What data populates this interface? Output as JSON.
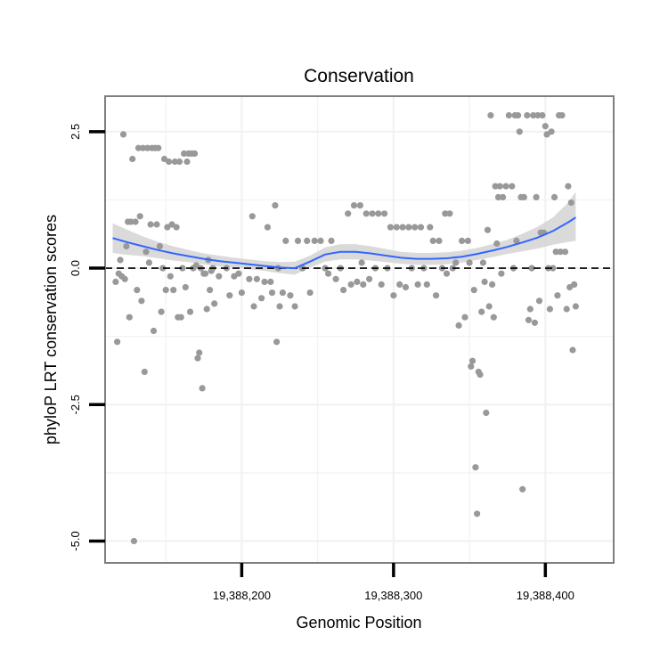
{
  "chart_data": {
    "type": "scatter",
    "title": "Conservation",
    "xlabel": "Genomic Position",
    "ylabel": "phyloP LRT conservation scores",
    "xlim": [
      19388110,
      19388445
    ],
    "ylim": [
      -5.4,
      3.15
    ],
    "x_ticks": [
      {
        "value": 19388200,
        "label": "19,388,200"
      },
      {
        "value": 19388300,
        "label": "19,388,300"
      },
      {
        "value": 19388400,
        "label": "19,388,400"
      }
    ],
    "y_ticks": [
      {
        "value": 2.5,
        "label": "2.5"
      },
      {
        "value": 0,
        "label": "0.0"
      },
      {
        "value": -2.5,
        "label": "-2.5"
      },
      {
        "value": -5,
        "label": "-5.0"
      }
    ],
    "reference_line": {
      "y": 0,
      "style": "dashed",
      "color": "#000000"
    },
    "grid": true,
    "colors": {
      "points": "#999999",
      "smooth": "#3366ff",
      "band": "#d3d3d3",
      "panel_border": "#7f7f7f",
      "grid": "#f2f2f2"
    },
    "points": [
      [
        19388117,
        -0.25
      ],
      [
        19388118,
        -1.35
      ],
      [
        19388119,
        -0.1
      ],
      [
        19388120,
        0.15
      ],
      [
        19388121,
        -0.15
      ],
      [
        19388122,
        2.45
      ],
      [
        19388123,
        -0.2
      ],
      [
        19388124,
        0.4
      ],
      [
        19388125,
        0.85
      ],
      [
        19388126,
        -0.9
      ],
      [
        19388127,
        0.85
      ],
      [
        19388128,
        2.0
      ],
      [
        19388129,
        -5.0
      ],
      [
        19388130,
        0.85
      ],
      [
        19388131,
        -0.4
      ],
      [
        19388132,
        2.2
      ],
      [
        19388133,
        0.95
      ],
      [
        19388134,
        -0.6
      ],
      [
        19388135,
        2.2
      ],
      [
        19388136,
        -1.9
      ],
      [
        19388137,
        0.3
      ],
      [
        19388138,
        2.2
      ],
      [
        19388139,
        0.1
      ],
      [
        19388140,
        0.8
      ],
      [
        19388141,
        2.2
      ],
      [
        19388142,
        -1.15
      ],
      [
        19388143,
        2.2
      ],
      [
        19388144,
        0.8
      ],
      [
        19388145,
        2.2
      ],
      [
        19388146,
        0.4
      ],
      [
        19388147,
        -0.8
      ],
      [
        19388148,
        0.0
      ],
      [
        19388149,
        2.0
      ],
      [
        19388150,
        -0.4
      ],
      [
        19388151,
        0.75
      ],
      [
        19388152,
        1.95
      ],
      [
        19388153,
        -0.15
      ],
      [
        19388154,
        0.8
      ],
      [
        19388155,
        -0.4
      ],
      [
        19388156,
        1.95
      ],
      [
        19388157,
        0.75
      ],
      [
        19388158,
        -0.9
      ],
      [
        19388159,
        1.95
      ],
      [
        19388160,
        -0.9
      ],
      [
        19388161,
        0.0
      ],
      [
        19388162,
        2.1
      ],
      [
        19388163,
        -0.35
      ],
      [
        19388164,
        1.95
      ],
      [
        19388165,
        2.1
      ],
      [
        19388166,
        -0.8
      ],
      [
        19388167,
        2.1
      ],
      [
        19388168,
        0.0
      ],
      [
        19388169,
        2.1
      ],
      [
        19388170,
        0.05
      ],
      [
        19388171,
        -1.65
      ],
      [
        19388172,
        -1.55
      ],
      [
        19388173,
        0.0
      ],
      [
        19388174,
        -2.2
      ],
      [
        19388175,
        -0.1
      ],
      [
        19388176,
        -0.1
      ],
      [
        19388177,
        -0.75
      ],
      [
        19388178,
        0.15
      ],
      [
        19388179,
        -0.4
      ],
      [
        19388180,
        -0.05
      ],
      [
        19388181,
        0.0
      ],
      [
        19388182,
        -0.65
      ],
      [
        19388185,
        -0.15
      ],
      [
        19388190,
        0.0
      ],
      [
        19388192,
        -0.5
      ],
      [
        19388195,
        -0.15
      ],
      [
        19388198,
        -0.1
      ],
      [
        19388200,
        -0.45
      ],
      [
        19388205,
        -0.2
      ],
      [
        19388207,
        0.95
      ],
      [
        19388208,
        -0.7
      ],
      [
        19388210,
        -0.2
      ],
      [
        19388213,
        -0.55
      ],
      [
        19388215,
        -0.25
      ],
      [
        19388217,
        0.75
      ],
      [
        19388219,
        -0.25
      ],
      [
        19388220,
        -0.45
      ],
      [
        19388222,
        1.15
      ],
      [
        19388223,
        -1.35
      ],
      [
        19388224,
        0.0
      ],
      [
        19388225,
        -0.7
      ],
      [
        19388227,
        -0.45
      ],
      [
        19388229,
        0.5
      ],
      [
        19388232,
        -0.5
      ],
      [
        19388235,
        -0.7
      ],
      [
        19388237,
        0.5
      ],
      [
        19388240,
        0.0
      ],
      [
        19388243,
        0.5
      ],
      [
        19388245,
        -0.45
      ],
      [
        19388248,
        0.5
      ],
      [
        19388252,
        0.5
      ],
      [
        19388255,
        0.0
      ],
      [
        19388257,
        -0.1
      ],
      [
        19388259,
        0.5
      ],
      [
        19388262,
        -0.2
      ],
      [
        19388265,
        0.0
      ],
      [
        19388267,
        -0.4
      ],
      [
        19388270,
        1.0
      ],
      [
        19388272,
        -0.3
      ],
      [
        19388274,
        1.15
      ],
      [
        19388276,
        -0.25
      ],
      [
        19388278,
        1.15
      ],
      [
        19388279,
        0.1
      ],
      [
        19388280,
        -0.3
      ],
      [
        19388282,
        1.0
      ],
      [
        19388284,
        -0.2
      ],
      [
        19388286,
        1.0
      ],
      [
        19388288,
        0.0
      ],
      [
        19388290,
        1.0
      ],
      [
        19388292,
        -0.3
      ],
      [
        19388294,
        1.0
      ],
      [
        19388296,
        0.0
      ],
      [
        19388298,
        0.75
      ],
      [
        19388300,
        -0.5
      ],
      [
        19388302,
        0.75
      ],
      [
        19388304,
        -0.3
      ],
      [
        19388306,
        0.75
      ],
      [
        19388308,
        -0.35
      ],
      [
        19388310,
        0.75
      ],
      [
        19388312,
        0.0
      ],
      [
        19388314,
        0.75
      ],
      [
        19388316,
        -0.3
      ],
      [
        19388318,
        0.75
      ],
      [
        19388320,
        0.0
      ],
      [
        19388322,
        -0.3
      ],
      [
        19388324,
        0.75
      ],
      [
        19388326,
        0.5
      ],
      [
        19388328,
        -0.5
      ],
      [
        19388330,
        0.5
      ],
      [
        19388332,
        0.0
      ],
      [
        19388334,
        1.0
      ],
      [
        19388335,
        -0.1
      ],
      [
        19388337,
        1.0
      ],
      [
        19388339,
        0.0
      ],
      [
        19388341,
        0.1
      ],
      [
        19388343,
        -1.05
      ],
      [
        19388345,
        0.5
      ],
      [
        19388347,
        -0.9
      ],
      [
        19388349,
        0.5
      ],
      [
        19388350,
        0.1
      ],
      [
        19388351,
        -1.8
      ],
      [
        19388352,
        -1.7
      ],
      [
        19388353,
        -0.4
      ],
      [
        19388354,
        -3.65
      ],
      [
        19388355,
        -4.5
      ],
      [
        19388356,
        -1.9
      ],
      [
        19388357,
        -1.95
      ],
      [
        19388358,
        -0.8
      ],
      [
        19388359,
        0.1
      ],
      [
        19388360,
        -0.25
      ],
      [
        19388361,
        -2.65
      ],
      [
        19388362,
        0.7
      ],
      [
        19388363,
        -0.7
      ],
      [
        19388364,
        2.8
      ],
      [
        19388365,
        -0.3
      ],
      [
        19388366,
        -0.9
      ],
      [
        19388367,
        1.5
      ],
      [
        19388368,
        0.45
      ],
      [
        19388369,
        1.3
      ],
      [
        19388370,
        1.5
      ],
      [
        19388371,
        -0.1
      ],
      [
        19388372,
        1.3
      ],
      [
        19388374,
        1.5
      ],
      [
        19388376,
        2.8
      ],
      [
        19388378,
        1.5
      ],
      [
        19388379,
        0.0
      ],
      [
        19388380,
        2.8
      ],
      [
        19388381,
        0.5
      ],
      [
        19388382,
        2.8
      ],
      [
        19388383,
        2.5
      ],
      [
        19388384,
        1.3
      ],
      [
        19388385,
        -4.05
      ],
      [
        19388386,
        1.3
      ],
      [
        19388388,
        2.8
      ],
      [
        19388389,
        -0.95
      ],
      [
        19388390,
        -0.75
      ],
      [
        19388391,
        0.0
      ],
      [
        19388392,
        2.8
      ],
      [
        19388393,
        -1.0
      ],
      [
        19388394,
        1.3
      ],
      [
        19388395,
        2.8
      ],
      [
        19388396,
        -0.6
      ],
      [
        19388397,
        0.65
      ],
      [
        19388398,
        2.8
      ],
      [
        19388399,
        0.65
      ],
      [
        19388400,
        2.6
      ],
      [
        19388401,
        2.45
      ],
      [
        19388402,
        0.0
      ],
      [
        19388403,
        -0.75
      ],
      [
        19388404,
        2.5
      ],
      [
        19388405,
        0.0
      ],
      [
        19388406,
        1.3
      ],
      [
        19388407,
        0.3
      ],
      [
        19388408,
        -0.5
      ],
      [
        19388409,
        2.8
      ],
      [
        19388410,
        0.3
      ],
      [
        19388411,
        2.8
      ],
      [
        19388413,
        0.3
      ],
      [
        19388414,
        -0.75
      ],
      [
        19388415,
        1.5
      ],
      [
        19388416,
        -0.35
      ],
      [
        19388417,
        1.2
      ],
      [
        19388418,
        -1.5
      ],
      [
        19388419,
        -0.3
      ],
      [
        19388420,
        -0.7
      ]
    ],
    "smooth": {
      "x": [
        19388115,
        19388125,
        19388135,
        19388145,
        19388155,
        19388165,
        19388175,
        19388185,
        19388195,
        19388205,
        19388215,
        19388225,
        19388235,
        19388245,
        19388255,
        19388265,
        19388275,
        19388285,
        19388295,
        19388305,
        19388315,
        19388325,
        19388335,
        19388345,
        19388355,
        19388365,
        19388375,
        19388385,
        19388395,
        19388405,
        19388415,
        19388420
      ],
      "y": [
        0.55,
        0.47,
        0.4,
        0.33,
        0.27,
        0.22,
        0.17,
        0.13,
        0.1,
        0.07,
        0.04,
        0.01,
        0.0,
        0.12,
        0.25,
        0.3,
        0.3,
        0.27,
        0.23,
        0.19,
        0.17,
        0.17,
        0.18,
        0.21,
        0.26,
        0.32,
        0.39,
        0.47,
        0.56,
        0.68,
        0.84,
        0.93
      ],
      "upper": [
        0.82,
        0.7,
        0.58,
        0.48,
        0.4,
        0.33,
        0.27,
        0.23,
        0.19,
        0.16,
        0.13,
        0.11,
        0.12,
        0.23,
        0.38,
        0.44,
        0.44,
        0.4,
        0.35,
        0.3,
        0.28,
        0.28,
        0.29,
        0.32,
        0.37,
        0.44,
        0.52,
        0.63,
        0.76,
        0.93,
        1.2,
        1.4
      ],
      "lower": [
        0.28,
        0.24,
        0.22,
        0.18,
        0.14,
        0.11,
        0.07,
        0.03,
        0.01,
        -0.02,
        -0.05,
        -0.09,
        -0.12,
        0.01,
        0.12,
        0.16,
        0.16,
        0.14,
        0.11,
        0.08,
        0.06,
        0.06,
        0.07,
        0.1,
        0.15,
        0.2,
        0.26,
        0.31,
        0.36,
        0.43,
        0.48,
        0.5
      ]
    }
  }
}
